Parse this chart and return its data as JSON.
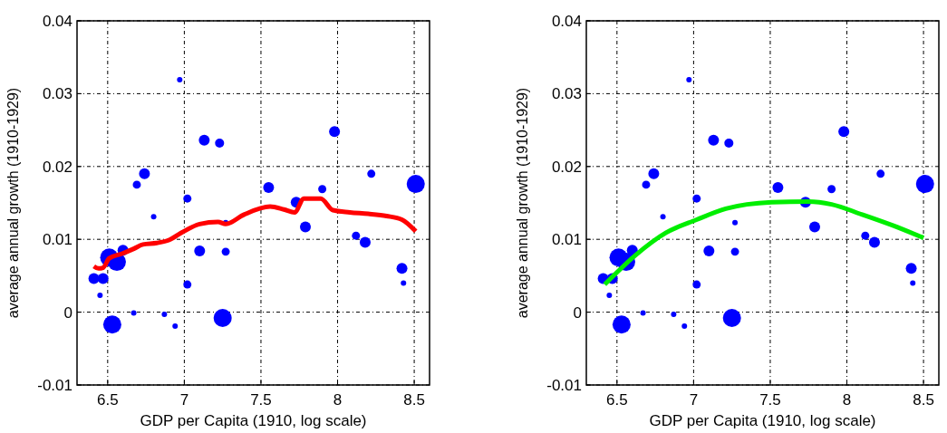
{
  "chart_data": [
    {
      "type": "bubble",
      "xlabel": "GDP per Capita (1910, log scale)",
      "ylabel": "average annual growth (1910-1929)",
      "xlim": [
        6.3,
        8.6
      ],
      "ylim": [
        -0.01,
        0.04
      ],
      "xticks": [
        6.5,
        7,
        7.5,
        8,
        8.5
      ],
      "yticks": [
        -0.01,
        0,
        0.01,
        0.02,
        0.03,
        0.04
      ],
      "grid": true,
      "series": [
        {
          "color": "#0000ff",
          "x": [
            6.41,
            6.47,
            6.45,
            6.51,
            6.56,
            6.6,
            6.53,
            6.67,
            6.69,
            6.74,
            6.8,
            6.87,
            6.94,
            6.97,
            7.02,
            7.02,
            7.1,
            7.13,
            7.23,
            7.27,
            7.27,
            7.25,
            7.55,
            7.73,
            7.79,
            7.9,
            7.98,
            8.12,
            8.18,
            8.22,
            8.42,
            8.43,
            8.51
          ],
          "values": [
            0.0046,
            0.0046,
            0.0023,
            0.0075,
            0.0069,
            0.0085,
            -0.0017,
            -0.0001,
            0.0175,
            0.019,
            0.0131,
            -0.0003,
            -0.0019,
            0.0319,
            0.0156,
            0.0038,
            0.0084,
            0.0236,
            0.0232,
            0.0123,
            0.0083,
            -0.0008,
            0.0171,
            0.0151,
            0.0117,
            0.0169,
            0.0248,
            0.0105,
            0.0096,
            0.019,
            0.006,
            0.004,
            0.0176
          ],
          "sizes": [
            0.36,
            0.36,
            0.09,
            1,
            1,
            0.36,
            1,
            0.09,
            0.2,
            0.36,
            0.09,
            0.09,
            0.09,
            0.09,
            0.2,
            0.2,
            0.36,
            0.36,
            0.25,
            0.09,
            0.2,
            1,
            0.36,
            0.36,
            0.36,
            0.2,
            0.36,
            0.2,
            0.36,
            0.2,
            0.36,
            0.09,
            1
          ]
        },
        {
          "type": "line",
          "color": "#ff0000",
          "x": [
            6.41,
            6.44,
            6.47,
            6.51,
            6.59,
            6.67,
            6.73,
            6.82,
            6.9,
            6.98,
            7.1,
            7.22,
            7.27,
            7.39,
            7.56,
            7.65,
            7.72,
            7.78,
            7.89,
            7.97,
            8.08,
            8.2,
            8.32,
            8.42,
            8.51
          ],
          "values": [
            0.0063,
            0.006,
            0.0061,
            0.0074,
            0.008,
            0.0087,
            0.0093,
            0.0095,
            0.0099,
            0.0109,
            0.0121,
            0.0124,
            0.0121,
            0.0134,
            0.0145,
            0.0141,
            0.0137,
            0.0156,
            0.0156,
            0.014,
            0.0137,
            0.0135,
            0.0132,
            0.0127,
            0.0111
          ]
        }
      ]
    },
    {
      "type": "bubble",
      "xlabel": "GDP per Capita (1910, log scale)",
      "ylabel": "average annual growth (1910-1929)",
      "xlim": [
        6.3,
        8.6
      ],
      "ylim": [
        -0.01,
        0.04
      ],
      "xticks": [
        6.5,
        7,
        7.5,
        8,
        8.5
      ],
      "yticks": [
        -0.01,
        0,
        0.01,
        0.02,
        0.03,
        0.04
      ],
      "grid": true,
      "series": [
        {
          "color": "#0000ff",
          "x": [
            6.41,
            6.47,
            6.45,
            6.51,
            6.56,
            6.6,
            6.53,
            6.67,
            6.69,
            6.74,
            6.8,
            6.87,
            6.94,
            6.97,
            7.02,
            7.02,
            7.1,
            7.13,
            7.23,
            7.27,
            7.27,
            7.25,
            7.55,
            7.73,
            7.79,
            7.9,
            7.98,
            8.12,
            8.18,
            8.22,
            8.42,
            8.43,
            8.51
          ],
          "values": [
            0.0046,
            0.0046,
            0.0023,
            0.0075,
            0.0069,
            0.0085,
            -0.0017,
            -0.0001,
            0.0175,
            0.019,
            0.0131,
            -0.0003,
            -0.0019,
            0.0319,
            0.0156,
            0.0038,
            0.0084,
            0.0236,
            0.0232,
            0.0123,
            0.0083,
            -0.0008,
            0.0171,
            0.0151,
            0.0117,
            0.0169,
            0.0248,
            0.0105,
            0.0096,
            0.019,
            0.006,
            0.004,
            0.0176
          ],
          "sizes": [
            0.36,
            0.36,
            0.09,
            1,
            1,
            0.36,
            1,
            0.09,
            0.2,
            0.36,
            0.09,
            0.09,
            0.09,
            0.09,
            0.2,
            0.2,
            0.36,
            0.36,
            0.25,
            0.09,
            0.2,
            1,
            0.36,
            0.36,
            0.36,
            0.2,
            0.36,
            0.2,
            0.36,
            0.2,
            0.36,
            0.09,
            1
          ]
        },
        {
          "type": "line",
          "color": "#00ee00",
          "x": [
            6.42,
            6.62,
            6.82,
            7.02,
            7.21,
            7.51,
            7.75,
            7.9,
            8.1,
            8.3,
            8.5
          ],
          "values": [
            0.0038,
            0.0078,
            0.0109,
            0.0127,
            0.0142,
            0.0151,
            0.0152,
            0.0148,
            0.0134,
            0.0119,
            0.0102
          ]
        }
      ]
    }
  ]
}
